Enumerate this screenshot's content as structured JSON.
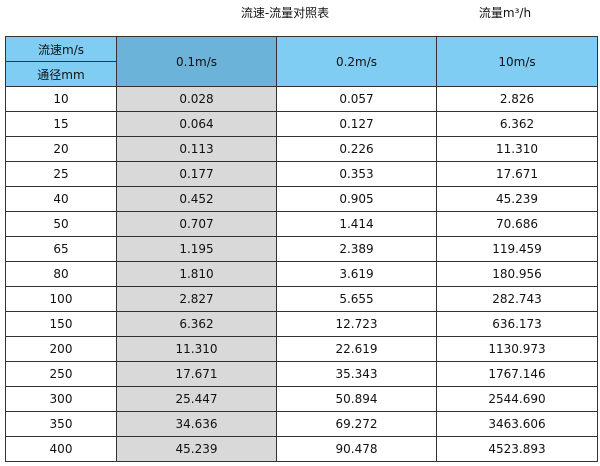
{
  "title": "流速-流量对照表",
  "unit": "流量m³/h",
  "colors": {
    "header": "#7fcdf3",
    "header_highlight": "#6cb3d9",
    "highlight_column": "#d9d9d9"
  },
  "header": {
    "velocity_label": "流速m/s",
    "diameter_label": "通径mm",
    "columns": [
      "0.1m/s",
      "0.2m/s",
      "10m/s"
    ]
  },
  "rows": [
    [
      "10",
      "0.028",
      "0.057",
      "2.826"
    ],
    [
      "15",
      "0.064",
      "0.127",
      "6.362"
    ],
    [
      "20",
      "0.113",
      "0.226",
      "11.310"
    ],
    [
      "25",
      "0.177",
      "0.353",
      "17.671"
    ],
    [
      "40",
      "0.452",
      "0.905",
      "45.239"
    ],
    [
      "50",
      "0.707",
      "1.414",
      "70.686"
    ],
    [
      "65",
      "1.195",
      "2.389",
      "119.459"
    ],
    [
      "80",
      "1.810",
      "3.619",
      "180.956"
    ],
    [
      "100",
      "2.827",
      "5.655",
      "282.743"
    ],
    [
      "150",
      "6.362",
      "12.723",
      "636.173"
    ],
    [
      "200",
      "11.310",
      "22.619",
      "1130.973"
    ],
    [
      "250",
      "17.671",
      "35.343",
      "1767.146"
    ],
    [
      "300",
      "25.447",
      "50.894",
      "2544.690"
    ],
    [
      "350",
      "34.636",
      "69.272",
      "3463.606"
    ],
    [
      "400",
      "45.239",
      "90.478",
      "4523.893"
    ]
  ]
}
